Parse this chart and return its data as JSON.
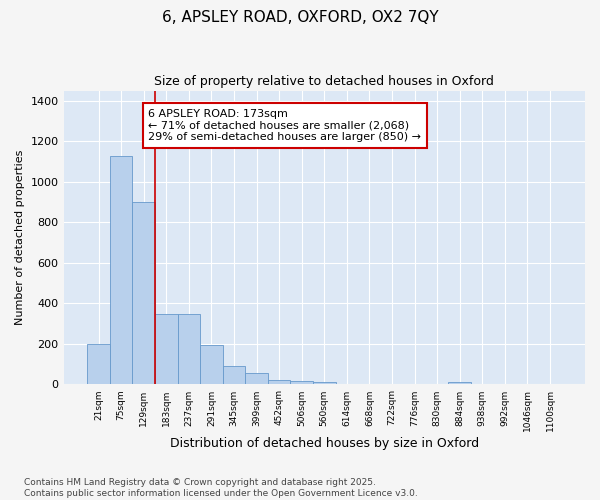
{
  "title_line1": "6, APSLEY ROAD, OXFORD, OX2 7QY",
  "title_line2": "Size of property relative to detached houses in Oxford",
  "xlabel": "Distribution of detached houses by size in Oxford",
  "ylabel": "Number of detached properties",
  "categories": [
    "21sqm",
    "75sqm",
    "129sqm",
    "183sqm",
    "237sqm",
    "291sqm",
    "345sqm",
    "399sqm",
    "452sqm",
    "506sqm",
    "560sqm",
    "614sqm",
    "668sqm",
    "722sqm",
    "776sqm",
    "830sqm",
    "884sqm",
    "938sqm",
    "992sqm",
    "1046sqm",
    "1100sqm"
  ],
  "values": [
    200,
    1125,
    900,
    350,
    350,
    195,
    90,
    55,
    20,
    15,
    10,
    0,
    0,
    0,
    0,
    0,
    10,
    0,
    0,
    0,
    0
  ],
  "bar_color": "#b8d0ec",
  "bar_edge_color": "#6699cc",
  "plot_bg_color": "#dde8f5",
  "fig_bg_color": "#f5f5f5",
  "grid_color": "#ffffff",
  "redline_index": 3,
  "annotation_text": "6 APSLEY ROAD: 173sqm\n← 71% of detached houses are smaller (2,068)\n29% of semi-detached houses are larger (850) →",
  "annotation_box_color": "#ffffff",
  "annotation_box_edge": "#cc0000",
  "redline_color": "#cc0000",
  "ylim": [
    0,
    1450
  ],
  "yticks": [
    0,
    200,
    400,
    600,
    800,
    1000,
    1200,
    1400
  ],
  "footer_line1": "Contains HM Land Registry data © Crown copyright and database right 2025.",
  "footer_line2": "Contains public sector information licensed under the Open Government Licence v3.0."
}
